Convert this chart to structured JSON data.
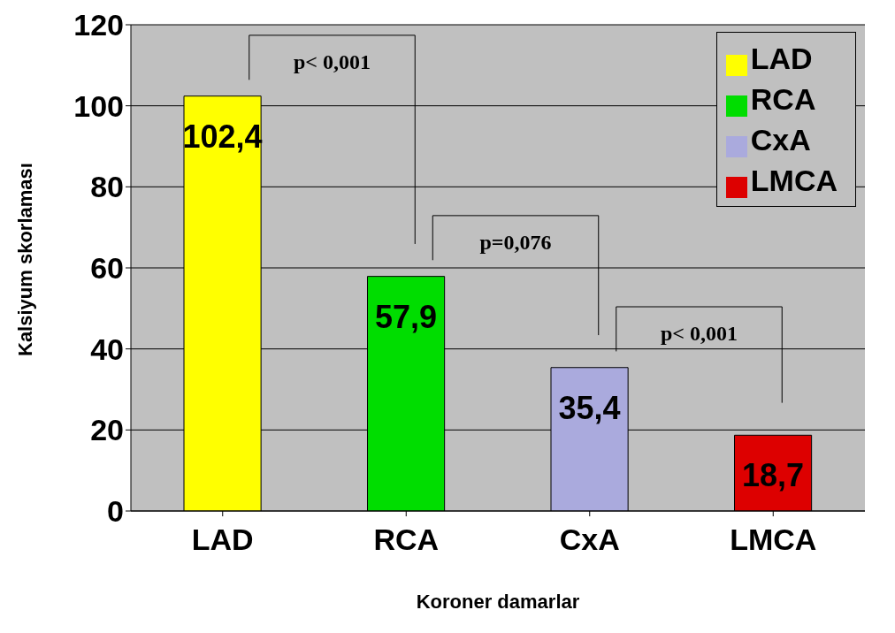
{
  "chart_data": {
    "type": "bar",
    "stacked": true,
    "categories": [
      "LAD",
      "RCA",
      "CxA",
      "LMCA"
    ],
    "series": [
      {
        "name": "LAD",
        "color": "#ffff00",
        "values": [
          102.4,
          null,
          null,
          null
        ],
        "value_labels": [
          "102,4",
          null,
          null,
          null
        ]
      },
      {
        "name": "RCA",
        "color": "#00dd00",
        "values": [
          null,
          57.9,
          null,
          null
        ],
        "value_labels": [
          null,
          "57,9",
          null,
          null
        ]
      },
      {
        "name": "CxA",
        "color": "#aaaadd",
        "values": [
          null,
          null,
          35.4,
          null
        ],
        "value_labels": [
          null,
          null,
          "35,4",
          null
        ]
      },
      {
        "name": "LMCA",
        "color": "#dd0000",
        "values": [
          null,
          null,
          null,
          18.7
        ],
        "value_labels": [
          null,
          null,
          null,
          "18,7"
        ]
      }
    ],
    "xlabel": "Koroner damarlar",
    "ylabel": "Kalsiyum skorlaması",
    "ylim": [
      0,
      120
    ],
    "yticks": [
      0,
      20,
      40,
      60,
      80,
      100,
      120
    ],
    "grid": "y",
    "legend": "top right",
    "annotations": [
      "p< 0,001",
      "p=0,076",
      "p< 0,001"
    ]
  }
}
